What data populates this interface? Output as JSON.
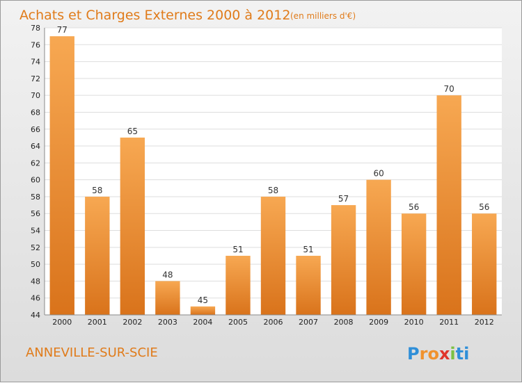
{
  "chart_data": {
    "type": "bar",
    "title": "Achats et Charges Externes 2000 à 2012",
    "subtitle": "(en milliers d'€)",
    "categories": [
      "2000",
      "2001",
      "2002",
      "2003",
      "2004",
      "2005",
      "2006",
      "2007",
      "2008",
      "2009",
      "2010",
      "2011",
      "2012"
    ],
    "values": [
      77,
      58,
      65,
      48,
      45,
      51,
      58,
      51,
      57,
      60,
      56,
      70,
      56
    ],
    "ylim": [
      44,
      78
    ],
    "yticks": [
      44,
      46,
      48,
      50,
      52,
      54,
      56,
      58,
      60,
      62,
      64,
      66,
      68,
      70,
      72,
      74,
      76,
      78
    ],
    "grid": true,
    "bar_color": "#f0922e"
  },
  "footer": {
    "city": "ANNEVILLE-SUR-SCIE",
    "logo_letters": [
      "P",
      "r",
      "o",
      "x",
      "i",
      "t",
      "i"
    ],
    "logo_colors": [
      "#2f8fd8",
      "#f0922e",
      "#f0922e",
      "#e0342b",
      "#7cc142",
      "#2f8fd8",
      "#2f8fd8"
    ]
  }
}
